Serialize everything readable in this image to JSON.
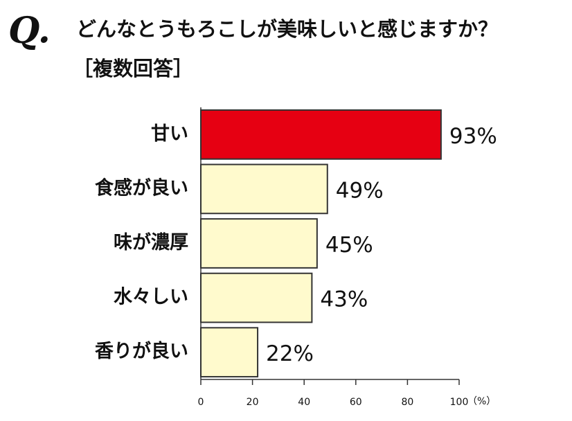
{
  "chart_data": {
    "type": "bar",
    "orientation": "horizontal",
    "q_label": "Q.",
    "title": "どんなとうもろこしが美味しいと感じますか？",
    "subtitle": "［複数回答］",
    "categories": [
      "甘い",
      "食感が良い",
      "味が濃厚",
      "水々しい",
      "香りが良い"
    ],
    "values": [
      93,
      49,
      45,
      43,
      22
    ],
    "value_labels": [
      "93%",
      "49%",
      "45%",
      "43%",
      "22%"
    ],
    "colors": [
      "#e60012",
      "#fffacd",
      "#fffacd",
      "#fffacd",
      "#fffacd"
    ],
    "xlim": [
      0,
      100
    ],
    "xticks": [
      0,
      20,
      40,
      60,
      80,
      100
    ],
    "x_unit": "（%）"
  }
}
